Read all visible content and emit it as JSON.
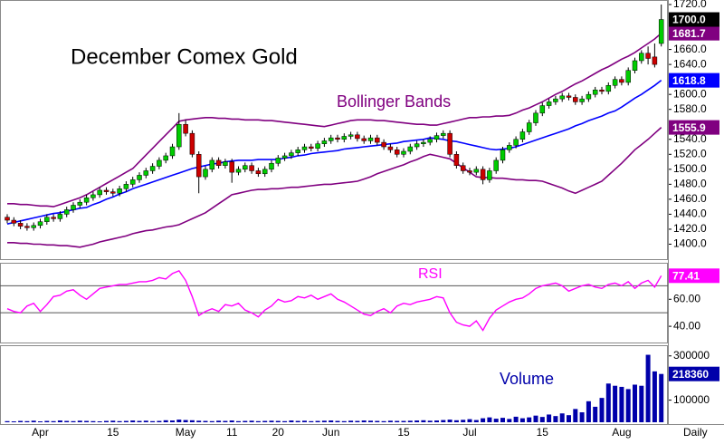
{
  "chart_data": [
    {
      "type": "candlestick",
      "title": "December Comex Gold",
      "annotation": "Bollinger Bands",
      "open": [
        1436,
        1432,
        1428,
        1424,
        1422,
        1425,
        1430,
        1436,
        1434,
        1440,
        1446,
        1452,
        1456,
        1462,
        1466,
        1472,
        1470,
        1468,
        1474,
        1480,
        1486,
        1492,
        1498,
        1504,
        1512,
        1518,
        1530,
        1560,
        1548,
        1520,
        1490,
        1500,
        1512,
        1505,
        1510,
        1496,
        1500,
        1505,
        1498,
        1494,
        1500,
        1508,
        1515,
        1518,
        1522,
        1526,
        1530,
        1528,
        1534,
        1538,
        1542,
        1540,
        1544,
        1546,
        1541,
        1538,
        1542,
        1536,
        1530,
        1526,
        1520,
        1524,
        1530,
        1534,
        1536,
        1540,
        1545,
        1548,
        1520,
        1505,
        1498,
        1496,
        1500,
        1486,
        1498,
        1512,
        1526,
        1532,
        1540,
        1550,
        1562,
        1575,
        1585,
        1590,
        1594,
        1598,
        1596,
        1590,
        1594,
        1600,
        1606,
        1604,
        1612,
        1620,
        1616,
        1632,
        1645,
        1655,
        1650,
        1668
      ],
      "high": [
        1440,
        1436,
        1432,
        1428,
        1429,
        1434,
        1440,
        1440,
        1444,
        1450,
        1456,
        1460,
        1466,
        1470,
        1476,
        1476,
        1474,
        1478,
        1484,
        1490,
        1496,
        1502,
        1508,
        1516,
        1522,
        1534,
        1575,
        1566,
        1552,
        1524,
        1504,
        1516,
        1516,
        1514,
        1514,
        1504,
        1509,
        1509,
        1502,
        1504,
        1512,
        1519,
        1522,
        1526,
        1530,
        1534,
        1534,
        1538,
        1542,
        1546,
        1546,
        1548,
        1550,
        1550,
        1545,
        1546,
        1546,
        1540,
        1534,
        1530,
        1528,
        1534,
        1538,
        1540,
        1544,
        1549,
        1552,
        1552,
        1524,
        1509,
        1502,
        1504,
        1504,
        1502,
        1516,
        1530,
        1536,
        1544,
        1554,
        1566,
        1579,
        1589,
        1594,
        1598,
        1602,
        1602,
        1600,
        1598,
        1604,
        1610,
        1610,
        1616,
        1624,
        1624,
        1636,
        1649,
        1659,
        1664,
        1668,
        1720
      ],
      "low": [
        1428,
        1424,
        1420,
        1418,
        1418,
        1421,
        1426,
        1430,
        1430,
        1436,
        1442,
        1448,
        1452,
        1458,
        1462,
        1466,
        1464,
        1464,
        1470,
        1476,
        1482,
        1488,
        1494,
        1500,
        1508,
        1514,
        1526,
        1544,
        1516,
        1468,
        1486,
        1496,
        1501,
        1501,
        1482,
        1492,
        1496,
        1494,
        1490,
        1490,
        1496,
        1504,
        1511,
        1514,
        1518,
        1522,
        1524,
        1524,
        1530,
        1534,
        1536,
        1536,
        1540,
        1537,
        1534,
        1534,
        1532,
        1526,
        1522,
        1516,
        1516,
        1520,
        1526,
        1530,
        1532,
        1536,
        1541,
        1516,
        1501,
        1494,
        1492,
        1492,
        1480,
        1482,
        1494,
        1508,
        1522,
        1528,
        1536,
        1546,
        1558,
        1571,
        1581,
        1586,
        1590,
        1592,
        1586,
        1586,
        1590,
        1596,
        1600,
        1600,
        1608,
        1612,
        1612,
        1628,
        1641,
        1640,
        1636,
        1664
      ],
      "close": [
        1432,
        1428,
        1424,
        1422,
        1425,
        1430,
        1436,
        1434,
        1440,
        1446,
        1452,
        1456,
        1462,
        1466,
        1472,
        1470,
        1468,
        1474,
        1480,
        1486,
        1492,
        1498,
        1504,
        1512,
        1518,
        1530,
        1560,
        1548,
        1520,
        1490,
        1500,
        1512,
        1505,
        1510,
        1496,
        1500,
        1505,
        1498,
        1494,
        1500,
        1508,
        1515,
        1518,
        1522,
        1526,
        1530,
        1528,
        1534,
        1538,
        1542,
        1540,
        1544,
        1546,
        1541,
        1538,
        1542,
        1536,
        1530,
        1526,
        1520,
        1524,
        1530,
        1534,
        1536,
        1540,
        1545,
        1548,
        1520,
        1505,
        1498,
        1496,
        1500,
        1486,
        1498,
        1512,
        1526,
        1532,
        1540,
        1550,
        1562,
        1575,
        1585,
        1590,
        1594,
        1598,
        1596,
        1590,
        1594,
        1600,
        1606,
        1604,
        1612,
        1620,
        1616,
        1632,
        1645,
        1655,
        1648,
        1640,
        1700
      ],
      "up_color": "#00cc00",
      "down_color": "#cc0000",
      "last_value_label": "1700.0",
      "overlays": [
        {
          "color": "#800080",
          "last_value_label": "1681.7",
          "values": [
            1454,
            1454,
            1453,
            1453,
            1452,
            1451,
            1451,
            1450,
            1453,
            1456,
            1459,
            1462,
            1466,
            1471,
            1476,
            1481,
            1486,
            1491,
            1496,
            1501,
            1510,
            1519,
            1528,
            1537,
            1546,
            1555,
            1564,
            1566,
            1567,
            1568,
            1569,
            1569,
            1568,
            1568,
            1567,
            1567,
            1566,
            1566,
            1566,
            1565,
            1565,
            1564,
            1563,
            1562,
            1561,
            1560,
            1559,
            1558,
            1557,
            1559,
            1561,
            1563,
            1565,
            1566,
            1566,
            1566,
            1565,
            1565,
            1564,
            1563,
            1562,
            1561,
            1560,
            1560,
            1559,
            1559,
            1561,
            1563,
            1565,
            1567,
            1569,
            1569,
            1570,
            1570,
            1571,
            1571,
            1572,
            1575,
            1579,
            1582,
            1586,
            1590,
            1595,
            1600,
            1604,
            1609,
            1614,
            1618,
            1623,
            1628,
            1633,
            1637,
            1642,
            1647,
            1651,
            1656,
            1662,
            1668,
            1674,
            1681.7
          ]
        },
        {
          "color": "#0000ff",
          "last_value_label": "1618.8",
          "values": [
            1427,
            1429,
            1431,
            1433,
            1435,
            1437,
            1439,
            1441,
            1442,
            1444,
            1446,
            1448,
            1449,
            1453,
            1456,
            1460,
            1463,
            1467,
            1470,
            1474,
            1477,
            1480,
            1483,
            1486,
            1489,
            1492,
            1495,
            1498,
            1501,
            1503,
            1505,
            1507,
            1508,
            1510,
            1511,
            1512,
            1512,
            1512,
            1513,
            1513,
            1513,
            1513,
            1515,
            1516,
            1518,
            1519,
            1521,
            1522,
            1523,
            1524,
            1525,
            1527,
            1528,
            1529,
            1530,
            1531,
            1532,
            1533,
            1534,
            1535,
            1537,
            1538,
            1539,
            1540,
            1542,
            1541,
            1540,
            1538,
            1537,
            1535,
            1533,
            1531,
            1529,
            1527,
            1526,
            1527,
            1528,
            1530,
            1533,
            1536,
            1539,
            1542,
            1545,
            1548,
            1551,
            1554,
            1558,
            1561,
            1565,
            1568,
            1571,
            1575,
            1578,
            1583,
            1589,
            1595,
            1600,
            1606,
            1612,
            1618.8
          ]
        },
        {
          "color": "#800080",
          "last_value_label": "1555.9",
          "values": [
            1402,
            1402,
            1401,
            1401,
            1400,
            1400,
            1399,
            1399,
            1398,
            1398,
            1397,
            1396,
            1398,
            1400,
            1403,
            1405,
            1407,
            1409,
            1411,
            1414,
            1416,
            1418,
            1419,
            1421,
            1423,
            1424,
            1426,
            1430,
            1434,
            1438,
            1442,
            1448,
            1454,
            1460,
            1466,
            1468,
            1470,
            1472,
            1473,
            1473,
            1474,
            1474,
            1475,
            1476,
            1476,
            1477,
            1478,
            1479,
            1480,
            1480,
            1481,
            1482,
            1483,
            1484,
            1487,
            1490,
            1494,
            1497,
            1500,
            1503,
            1506,
            1510,
            1513,
            1517,
            1520,
            1518,
            1516,
            1514,
            1508,
            1502,
            1496,
            1490,
            1489,
            1489,
            1488,
            1488,
            1487,
            1486,
            1486,
            1485,
            1485,
            1484,
            1481,
            1478,
            1475,
            1471,
            1468,
            1472,
            1476,
            1480,
            1484,
            1492,
            1500,
            1508,
            1517,
            1526,
            1533,
            1540,
            1548,
            1555.9
          ]
        }
      ],
      "ylim": [
        1380,
        1720
      ],
      "yticks": [
        {
          "value": 1400,
          "label": "1400.0"
        },
        {
          "value": 1420,
          "label": "1420.0"
        },
        {
          "value": 1440,
          "label": "1440.0"
        },
        {
          "value": 1460,
          "label": "1460.0"
        },
        {
          "value": 1480,
          "label": "1480.0"
        },
        {
          "value": 1500,
          "label": "1500.0"
        },
        {
          "value": 1520,
          "label": "1520.0"
        },
        {
          "value": 1540,
          "label": "1540.0"
        },
        {
          "value": 1580,
          "label": "1580.0"
        },
        {
          "value": 1600,
          "label": "1600.0"
        },
        {
          "value": 1640,
          "label": "1640.0"
        },
        {
          "value": 1660,
          "label": "1660.0"
        },
        {
          "value": 1720,
          "label": "1720.0"
        }
      ]
    },
    {
      "type": "line",
      "annotation": "RSI",
      "color": "#ff00ff",
      "last_value_label": "77.41",
      "values": [
        53,
        51,
        50,
        55,
        57,
        51,
        56,
        62,
        63,
        66,
        67,
        63,
        60,
        64,
        68,
        69,
        70,
        71,
        71,
        72,
        73,
        73,
        74,
        76,
        75,
        79,
        81,
        74,
        62,
        48,
        51,
        53,
        51,
        56,
        55,
        57,
        52,
        50,
        47,
        52,
        55,
        60,
        58,
        59,
        62,
        61,
        63,
        60,
        62,
        64,
        60,
        58,
        55,
        52,
        49,
        48,
        51,
        53,
        50,
        55,
        57,
        56,
        58,
        59,
        60,
        62,
        61,
        50,
        43,
        41,
        40,
        44,
        37,
        46,
        52,
        55,
        58,
        60,
        61,
        64,
        68,
        70,
        71,
        72,
        70,
        66,
        68,
        70,
        71,
        69,
        68,
        71,
        72,
        70,
        73,
        68,
        72,
        74,
        69,
        77.41
      ],
      "levels": [
        70,
        50
      ],
      "ylim": [
        28,
        87
      ],
      "yticks": [
        {
          "value": 60,
          "label": "60.00"
        },
        {
          "value": 40,
          "label": "40.00"
        }
      ]
    },
    {
      "type": "bar",
      "annotation": "Volume",
      "color": "#0000aa",
      "last_value_label": "218360",
      "x_label": "Daily",
      "categories": [
        null,
        null,
        null,
        null,
        null,
        "Apr",
        null,
        null,
        null,
        null,
        null,
        null,
        null,
        null,
        null,
        null,
        "15",
        null,
        null,
        null,
        null,
        null,
        null,
        null,
        null,
        null,
        null,
        "May",
        null,
        null,
        null,
        null,
        null,
        null,
        "11",
        null,
        null,
        null,
        null,
        null,
        null,
        "20",
        null,
        null,
        null,
        null,
        null,
        null,
        null,
        "Jun",
        null,
        null,
        null,
        null,
        null,
        null,
        null,
        null,
        null,
        null,
        "15",
        null,
        null,
        null,
        null,
        null,
        null,
        null,
        null,
        null,
        "Jul",
        null,
        null,
        null,
        null,
        null,
        null,
        null,
        null,
        null,
        null,
        "15",
        null,
        null,
        null,
        null,
        null,
        null,
        null,
        null,
        null,
        null,
        null,
        "Aug",
        null,
        null,
        null,
        null,
        null,
        null
      ],
      "values": [
        5000,
        4000,
        6000,
        5000,
        7000,
        4000,
        6000,
        5000,
        8000,
        6000,
        5000,
        7000,
        6000,
        5000,
        4000,
        6000,
        7000,
        5000,
        6000,
        8000,
        6000,
        7000,
        5000,
        6000,
        9000,
        8000,
        12000,
        10000,
        9000,
        7000,
        6000,
        5000,
        7000,
        6000,
        8000,
        5000,
        6000,
        7000,
        5000,
        6000,
        7000,
        6000,
        5000,
        8000,
        6000,
        7000,
        5000,
        6000,
        7000,
        8000,
        6000,
        5000,
        7000,
        6000,
        8000,
        7000,
        6000,
        5000,
        7000,
        6000,
        6000,
        7000,
        8000,
        9000,
        7000,
        8000,
        10000,
        12000,
        9000,
        11000,
        14000,
        10000,
        18000,
        22000,
        16000,
        20000,
        15000,
        25000,
        18000,
        22000,
        30000,
        24000,
        35000,
        28000,
        40000,
        32000,
        60000,
        45000,
        95000,
        70000,
        110000,
        175000,
        165000,
        160000,
        150000,
        170000,
        165000,
        305000,
        230000,
        218360
      ],
      "ylim": [
        0,
        340000
      ],
      "yticks": [
        100000,
        300000
      ]
    }
  ]
}
